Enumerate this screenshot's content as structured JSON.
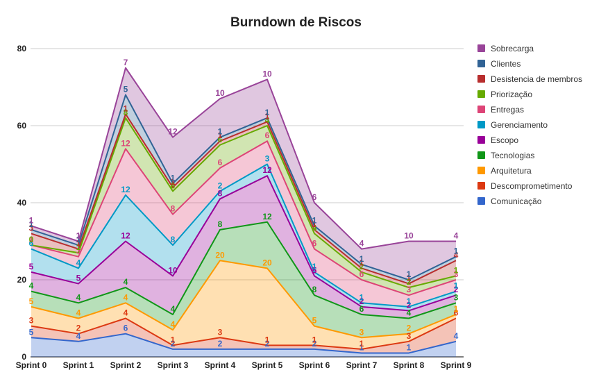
{
  "chart_data": {
    "type": "area",
    "stacked": true,
    "title": "Burndown de Riscos",
    "xlabel": "",
    "ylabel": "",
    "ylim": [
      0,
      80
    ],
    "yticks": [
      0,
      20,
      40,
      60,
      80
    ],
    "grid": true,
    "legend_position": "right",
    "categories": [
      "Sprint 0",
      "Sprint 1",
      "Sprint 2",
      "Sprint 3",
      "Sprint 4",
      "Sprint 5",
      "Sprint 6",
      "Sprint 7",
      "Sprint 8",
      "Sprint 9"
    ],
    "series": [
      {
        "name": "Comunicação",
        "color": "#3366cc",
        "values": [
          5,
          4,
          6,
          2,
          2,
          2,
          2,
          1,
          1,
          4
        ]
      },
      {
        "name": "Descomprometimento",
        "color": "#dc3912",
        "values": [
          3,
          2,
          4,
          1,
          3,
          1,
          1,
          1,
          3,
          6
        ]
      },
      {
        "name": "Arquitetura",
        "color": "#ff9900",
        "values": [
          5,
          4,
          4,
          4,
          20,
          20,
          5,
          3,
          2,
          1
        ]
      },
      {
        "name": "Tecnologias",
        "color": "#109618",
        "values": [
          4,
          4,
          4,
          4,
          8,
          12,
          8,
          6,
          4,
          3
        ]
      },
      {
        "name": "Escopo",
        "color": "#990099",
        "values": [
          5,
          5,
          12,
          10,
          8,
          12,
          5,
          2,
          2,
          2
        ]
      },
      {
        "name": "Gerenciamento",
        "color": "#0099c6",
        "values": [
          6,
          4,
          12,
          8,
          2,
          3,
          1,
          1,
          1,
          1
        ]
      },
      {
        "name": "Entregas",
        "color": "#dd4477",
        "values": [
          1,
          3,
          12,
          8,
          6,
          6,
          6,
          6,
          3,
          3
        ]
      },
      {
        "name": "Priorização",
        "color": "#66aa00",
        "values": [
          0,
          1,
          8,
          6,
          6,
          4,
          4,
          2,
          2,
          1
        ]
      },
      {
        "name": "Desistencia de membros",
        "color": "#b82e2e",
        "values": [
          3,
          1,
          1,
          1,
          1,
          1,
          1,
          1,
          1,
          4
        ]
      },
      {
        "name": "Clientes",
        "color": "#316395",
        "values": [
          1,
          1,
          5,
          1,
          1,
          1,
          1,
          1,
          1,
          1
        ]
      },
      {
        "name": "Sobrecarga",
        "color": "#994499",
        "values": [
          1,
          1,
          7,
          12,
          10,
          10,
          6,
          4,
          10,
          4
        ]
      }
    ]
  }
}
